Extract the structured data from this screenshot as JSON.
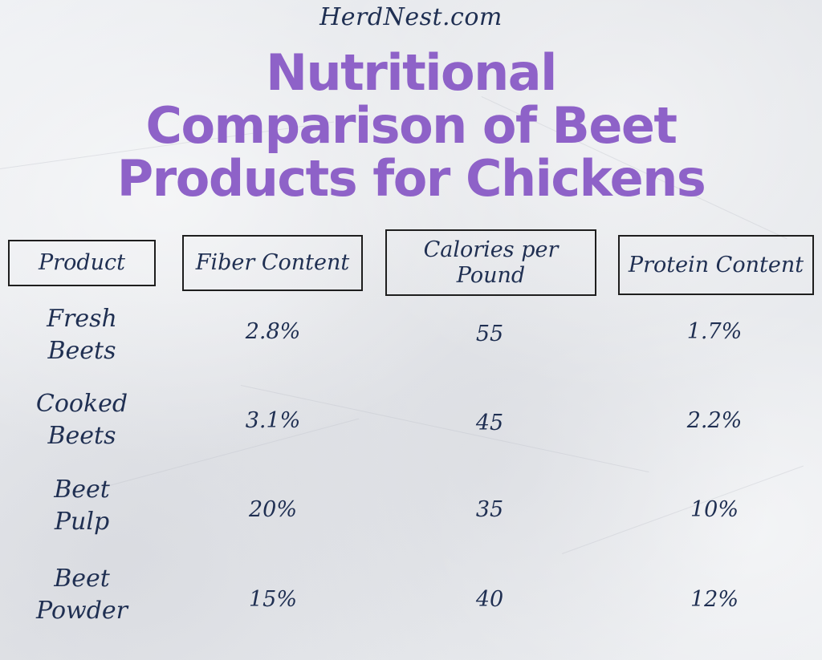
{
  "site": "HerdNest.com",
  "title": "Nutritional Comparison of Beet Products for Chickens",
  "title_lines": [
    "Nutritional",
    "Comparison of Beet",
    "Products for Chickens"
  ],
  "headers": {
    "product": "Product",
    "fiber": "Fiber Content",
    "calories_line1": "Calories per",
    "calories_line2": "Pound",
    "protein": "Protein Content"
  },
  "rows": [
    {
      "name_line1": "Fresh",
      "name_line2": "Beets",
      "fiber": "2.8%",
      "calories": "55",
      "protein": "1.7%"
    },
    {
      "name_line1": "Cooked",
      "name_line2": "Beets",
      "fiber": "3.1%",
      "calories": "45",
      "protein": "2.2%"
    },
    {
      "name_line1": "Beet",
      "name_line2": "Pulp",
      "fiber": "20%",
      "calories": "35",
      "protein": "10%"
    },
    {
      "name_line1": "Beet",
      "name_line2": "Powder",
      "fiber": "15%",
      "calories": "40",
      "protein": "12%"
    }
  ],
  "colors": {
    "title": "#8e62c8",
    "text": "#1f2f52",
    "border": "#1e1e1e",
    "background": "#e9eaec"
  }
}
